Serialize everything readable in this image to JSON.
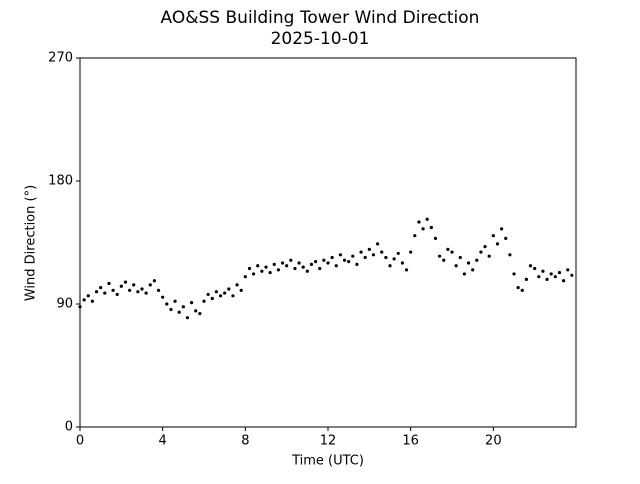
{
  "chart_data": {
    "type": "scatter",
    "title": "AO&SS Building Tower Wind Direction",
    "subtitle": "2025-10-01",
    "xlabel": "Time (UTC)",
    "ylabel": "Wind Direction (°)",
    "color": "#000000",
    "xlim": [
      0,
      24
    ],
    "ylim": [
      0,
      270
    ],
    "xticks": [
      0,
      4,
      8,
      12,
      16,
      20
    ],
    "yticks": [
      0,
      90,
      180,
      270
    ],
    "x": [
      0,
      0.2,
      0.4,
      0.6,
      0.8,
      1,
      1.2,
      1.4,
      1.6,
      1.8,
      2,
      2.2,
      2.4,
      2.6,
      2.8,
      3,
      3.2,
      3.4,
      3.6,
      3.8,
      4,
      4.2,
      4.4,
      4.6,
      4.8,
      5,
      5.2,
      5.4,
      5.6,
      5.8,
      6,
      6.2,
      6.4,
      6.6,
      6.8,
      7,
      7.2,
      7.4,
      7.6,
      7.8,
      8,
      8.2,
      8.4,
      8.6,
      8.8,
      9,
      9.2,
      9.4,
      9.6,
      9.8,
      10,
      10.2,
      10.4,
      10.6,
      10.8,
      11,
      11.2,
      11.4,
      11.6,
      11.8,
      12,
      12.2,
      12.4,
      12.6,
      12.8,
      13,
      13.2,
      13.4,
      13.6,
      13.8,
      14,
      14.2,
      14.4,
      14.6,
      14.8,
      15,
      15.2,
      15.4,
      15.6,
      15.8,
      16,
      16.2,
      16.4,
      16.6,
      16.8,
      17,
      17.2,
      17.4,
      17.6,
      17.8,
      18,
      18.2,
      18.4,
      18.6,
      18.8,
      19,
      19.2,
      19.4,
      19.6,
      19.8,
      20,
      20.2,
      20.4,
      20.6,
      20.8,
      21,
      21.2,
      21.4,
      21.6,
      21.8,
      22,
      22.2,
      22.4,
      22.6,
      22.8,
      23,
      23.2,
      23.4,
      23.6,
      23.8
    ],
    "values": [
      88,
      93,
      96,
      92,
      99,
      102,
      98,
      105,
      100,
      97,
      103,
      106,
      100,
      104,
      99,
      101,
      98,
      104,
      107,
      100,
      95,
      90,
      86,
      92,
      84,
      88,
      80,
      91,
      85,
      83,
      92,
      97,
      94,
      99,
      96,
      98,
      101,
      96,
      104,
      100,
      110,
      116,
      112,
      118,
      114,
      117,
      113,
      119,
      115,
      120,
      118,
      122,
      116,
      120,
      117,
      114,
      119,
      121,
      116,
      122,
      120,
      124,
      118,
      126,
      122,
      121,
      125,
      119,
      128,
      124,
      130,
      126,
      134,
      128,
      124,
      118,
      123,
      127,
      120,
      115,
      128,
      140,
      150,
      145,
      152,
      146,
      138,
      125,
      122,
      130,
      128,
      118,
      124,
      112,
      120,
      115,
      122,
      128,
      132,
      125,
      140,
      134,
      145,
      138,
      126,
      112,
      102,
      100,
      108,
      118,
      116,
      110,
      114,
      108,
      112,
      110,
      113,
      107,
      115,
      111
    ]
  }
}
